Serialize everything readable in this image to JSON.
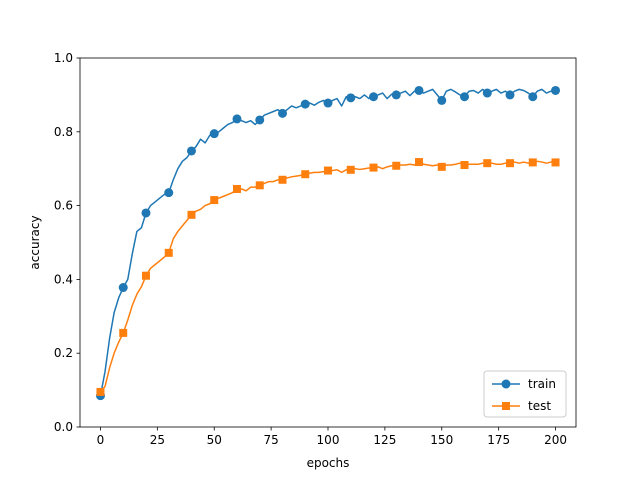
{
  "chart_data": {
    "type": "line",
    "title": "",
    "xlabel": "epochs",
    "ylabel": "accuracy",
    "xlim": [
      -9,
      209
    ],
    "ylim": [
      0.0,
      1.0
    ],
    "xticks": [
      "0",
      "25",
      "50",
      "75",
      "100",
      "125",
      "150",
      "175",
      "200"
    ],
    "yticks": [
      "0.0",
      "0.2",
      "0.4",
      "0.6",
      "0.8",
      "1.0"
    ],
    "grid": false,
    "legend_position": "lower right",
    "series": [
      {
        "name": "train",
        "color": "#1f77b4",
        "marker": "circle",
        "marker_x": [
          0,
          10,
          20,
          30,
          40,
          50,
          60,
          70,
          80,
          90,
          100,
          110,
          120,
          130,
          140,
          150,
          160,
          170,
          180,
          190,
          200
        ],
        "x": [
          0,
          2,
          4,
          6,
          8,
          10,
          12,
          14,
          16,
          18,
          20,
          22,
          24,
          26,
          28,
          30,
          32,
          34,
          36,
          38,
          40,
          42,
          44,
          46,
          48,
          50,
          52,
          54,
          56,
          58,
          60,
          62,
          64,
          66,
          68,
          70,
          72,
          74,
          76,
          78,
          80,
          82,
          84,
          86,
          88,
          90,
          92,
          94,
          96,
          98,
          100,
          102,
          104,
          106,
          108,
          110,
          112,
          114,
          116,
          118,
          120,
          122,
          124,
          126,
          128,
          130,
          132,
          134,
          136,
          138,
          140,
          142,
          144,
          146,
          148,
          150,
          152,
          154,
          156,
          158,
          160,
          162,
          164,
          166,
          168,
          170,
          172,
          174,
          176,
          178,
          180,
          182,
          184,
          186,
          188,
          190,
          192,
          194,
          196,
          198,
          200
        ],
        "values": [
          0.085,
          0.15,
          0.24,
          0.31,
          0.35,
          0.378,
          0.4,
          0.47,
          0.53,
          0.54,
          0.58,
          0.6,
          0.61,
          0.62,
          0.63,
          0.635,
          0.67,
          0.7,
          0.72,
          0.73,
          0.748,
          0.76,
          0.78,
          0.77,
          0.79,
          0.795,
          0.8,
          0.81,
          0.82,
          0.825,
          0.835,
          0.83,
          0.825,
          0.83,
          0.82,
          0.832,
          0.845,
          0.85,
          0.855,
          0.86,
          0.85,
          0.86,
          0.87,
          0.865,
          0.87,
          0.875,
          0.878,
          0.872,
          0.88,
          0.885,
          0.878,
          0.885,
          0.89,
          0.87,
          0.895,
          0.892,
          0.895,
          0.89,
          0.9,
          0.89,
          0.895,
          0.9,
          0.905,
          0.89,
          0.902,
          0.9,
          0.905,
          0.91,
          0.898,
          0.91,
          0.912,
          0.905,
          0.91,
          0.915,
          0.9,
          0.885,
          0.91,
          0.915,
          0.908,
          0.9,
          0.895,
          0.91,
          0.912,
          0.905,
          0.915,
          0.905,
          0.91,
          0.915,
          0.905,
          0.91,
          0.9,
          0.91,
          0.915,
          0.912,
          0.905,
          0.895,
          0.91,
          0.915,
          0.905,
          0.91,
          0.912
        ]
      },
      {
        "name": "test",
        "color": "#ff7f0e",
        "marker": "square",
        "marker_x": [
          0,
          10,
          20,
          30,
          40,
          50,
          60,
          70,
          80,
          90,
          100,
          110,
          120,
          130,
          140,
          150,
          160,
          170,
          180,
          190,
          200
        ],
        "x": [
          0,
          2,
          4,
          6,
          8,
          10,
          12,
          14,
          16,
          18,
          20,
          22,
          24,
          26,
          28,
          30,
          32,
          34,
          36,
          38,
          40,
          42,
          44,
          46,
          48,
          50,
          52,
          54,
          56,
          58,
          60,
          62,
          64,
          66,
          68,
          70,
          72,
          74,
          76,
          78,
          80,
          82,
          84,
          86,
          88,
          90,
          92,
          94,
          96,
          98,
          100,
          102,
          104,
          106,
          108,
          110,
          112,
          114,
          116,
          118,
          120,
          122,
          124,
          126,
          128,
          130,
          132,
          134,
          136,
          138,
          140,
          142,
          144,
          146,
          148,
          150,
          152,
          154,
          156,
          158,
          160,
          162,
          164,
          166,
          168,
          170,
          172,
          174,
          176,
          178,
          180,
          182,
          184,
          186,
          188,
          190,
          192,
          194,
          196,
          198,
          200
        ],
        "values": [
          0.095,
          0.11,
          0.16,
          0.2,
          0.23,
          0.255,
          0.29,
          0.33,
          0.36,
          0.38,
          0.41,
          0.43,
          0.44,
          0.45,
          0.46,
          0.472,
          0.51,
          0.53,
          0.545,
          0.56,
          0.575,
          0.585,
          0.59,
          0.6,
          0.605,
          0.615,
          0.62,
          0.625,
          0.63,
          0.635,
          0.645,
          0.645,
          0.64,
          0.65,
          0.65,
          0.655,
          0.66,
          0.665,
          0.665,
          0.67,
          0.67,
          0.675,
          0.678,
          0.68,
          0.682,
          0.685,
          0.688,
          0.69,
          0.69,
          0.692,
          0.695,
          0.695,
          0.697,
          0.69,
          0.697,
          0.697,
          0.7,
          0.698,
          0.7,
          0.702,
          0.703,
          0.705,
          0.7,
          0.705,
          0.708,
          0.708,
          0.71,
          0.71,
          0.712,
          0.71,
          0.718,
          0.712,
          0.71,
          0.708,
          0.71,
          0.705,
          0.71,
          0.71,
          0.712,
          0.715,
          0.71,
          0.712,
          0.712,
          0.712,
          0.715,
          0.715,
          0.715,
          0.712,
          0.712,
          0.715,
          0.715,
          0.718,
          0.715,
          0.718,
          0.715,
          0.717,
          0.72,
          0.718,
          0.715,
          0.718,
          0.717
        ]
      }
    ]
  }
}
